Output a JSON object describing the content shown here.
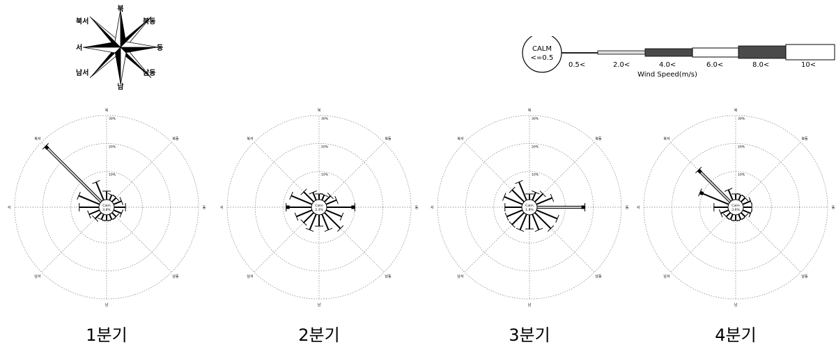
{
  "compass": {
    "labels": {
      "n": "북",
      "ne": "북동",
      "e": "동",
      "se": "남동",
      "s": "남",
      "sw": "남서",
      "w": "서",
      "nw": "북서"
    }
  },
  "legend": {
    "calm_title": "CALM",
    "calm_value": "<=0.5",
    "bins": [
      "0.5<",
      "2.0<",
      "4.0<",
      "6.0<",
      "8.0<",
      "10<"
    ],
    "axis_label": "Wind Speed(m/s)"
  },
  "colors": {
    "line": "#000000",
    "grid": "#777777",
    "bins": [
      "#222222",
      "#dddddd",
      "#4a4a4a",
      "#ffffff",
      "#4a4a4a",
      "#ffffff"
    ]
  },
  "chart_data": [
    {
      "type": "windrose",
      "label": "1분기",
      "ring_labels": [
        "10%",
        "20%",
        "30%"
      ],
      "ring_max": 30,
      "calm_text": "Calm",
      "calm_value": "3.8%",
      "direction_labels": {
        "n": "북",
        "ne": "북동",
        "e": "동",
        "se": "남동",
        "s": "남",
        "sw": "남서",
        "w": "서",
        "nw": "북서"
      },
      "directions": [
        {
          "d": 0,
          "v": 3
        },
        {
          "d": 22.5,
          "v": 2
        },
        {
          "d": 45,
          "v": 2
        },
        {
          "d": 67.5,
          "v": 3
        },
        {
          "d": 90,
          "v": 4
        },
        {
          "d": 112.5,
          "v": 3
        },
        {
          "d": 135,
          "v": 2
        },
        {
          "d": 157.5,
          "v": 2
        },
        {
          "d": 180,
          "v": 2
        },
        {
          "d": 202.5,
          "v": 2
        },
        {
          "d": 225,
          "v": 3
        },
        {
          "d": 247.5,
          "v": 4
        },
        {
          "d": 270,
          "v": 7
        },
        {
          "d": 292.5,
          "v": 8
        },
        {
          "d": 315,
          "v": 28
        },
        {
          "d": 337.5,
          "v": 7
        }
      ]
    },
    {
      "type": "windrose",
      "label": "2분기",
      "ring_labels": [
        "10%",
        "20%",
        "30%"
      ],
      "ring_max": 30,
      "calm_text": "Calm",
      "calm_value": "2.3%",
      "direction_labels": {
        "n": "북",
        "ne": "북동",
        "e": "동",
        "se": "남동",
        "s": "남",
        "sw": "남서",
        "w": "서",
        "nw": "북서"
      },
      "directions": [
        {
          "d": 0,
          "v": 2
        },
        {
          "d": 22.5,
          "v": 2
        },
        {
          "d": 45,
          "v": 3
        },
        {
          "d": 67.5,
          "v": 4
        },
        {
          "d": 90,
          "v": 10
        },
        {
          "d": 112.5,
          "v": 6
        },
        {
          "d": 135,
          "v": 8
        },
        {
          "d": 157.5,
          "v": 6
        },
        {
          "d": 180,
          "v": 4
        },
        {
          "d": 202.5,
          "v": 6
        },
        {
          "d": 225,
          "v": 5
        },
        {
          "d": 247.5,
          "v": 6
        },
        {
          "d": 270,
          "v": 9
        },
        {
          "d": 292.5,
          "v": 8
        },
        {
          "d": 315,
          "v": 5
        },
        {
          "d": 337.5,
          "v": 3
        }
      ]
    },
    {
      "type": "windrose",
      "label": "3분기",
      "ring_labels": [
        "10%",
        "20%",
        "30%"
      ],
      "ring_max": 30,
      "calm_text": "Calm",
      "calm_value": "1.8%",
      "direction_labels": {
        "n": "북",
        "ne": "북동",
        "e": "동",
        "se": "남동",
        "s": "남",
        "sw": "남서",
        "w": "서",
        "nw": "북서"
      },
      "directions": [
        {
          "d": 0,
          "v": 2
        },
        {
          "d": 22.5,
          "v": 3
        },
        {
          "d": 45,
          "v": 4
        },
        {
          "d": 67.5,
          "v": 6
        },
        {
          "d": 90,
          "v": 17
        },
        {
          "d": 112.5,
          "v": 8
        },
        {
          "d": 135,
          "v": 8
        },
        {
          "d": 157.5,
          "v": 6
        },
        {
          "d": 180,
          "v": 5
        },
        {
          "d": 202.5,
          "v": 6
        },
        {
          "d": 225,
          "v": 6
        },
        {
          "d": 247.5,
          "v": 6
        },
        {
          "d": 270,
          "v": 6
        },
        {
          "d": 292.5,
          "v": 7
        },
        {
          "d": 315,
          "v": 6
        },
        {
          "d": 337.5,
          "v": 7
        }
      ]
    },
    {
      "type": "windrose",
      "label": "4분기",
      "ring_labels": [
        "10%",
        "20%",
        "30%"
      ],
      "ring_max": 30,
      "calm_text": "Calm",
      "calm_value": "3.6%",
      "direction_labels": {
        "n": "북",
        "ne": "북동",
        "e": "동",
        "se": "남동",
        "s": "남",
        "sw": "남서",
        "w": "서",
        "nw": "북서"
      },
      "directions": [
        {
          "d": 0,
          "v": 2
        },
        {
          "d": 22.5,
          "v": 2
        },
        {
          "d": 45,
          "v": 2
        },
        {
          "d": 67.5,
          "v": 3
        },
        {
          "d": 90,
          "v": 3
        },
        {
          "d": 112.5,
          "v": 3
        },
        {
          "d": 135,
          "v": 2
        },
        {
          "d": 157.5,
          "v": 2
        },
        {
          "d": 180,
          "v": 2
        },
        {
          "d": 202.5,
          "v": 2
        },
        {
          "d": 225,
          "v": 2
        },
        {
          "d": 247.5,
          "v": 3
        },
        {
          "d": 270,
          "v": 5
        },
        {
          "d": 292.5,
          "v": 11
        },
        {
          "d": 315,
          "v": 16
        },
        {
          "d": 337.5,
          "v": 4
        }
      ]
    }
  ]
}
